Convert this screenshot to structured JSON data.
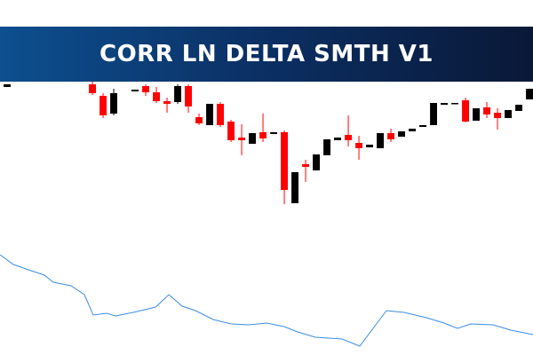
{
  "chart_data": {
    "type": "candlestick",
    "title": "CORR LN DELTA SMTH V1",
    "xlim": [
      -0.67,
      49.33
    ],
    "ylim": [
      0,
      400
    ],
    "up_color": "#000000",
    "down_color": "#ff0000",
    "x": [
      0,
      8,
      9,
      10,
      12,
      13,
      14,
      15,
      16,
      17,
      18,
      19,
      20,
      21,
      22,
      23,
      24,
      25,
      26,
      27,
      28,
      29,
      30,
      31,
      32,
      33,
      34,
      35,
      36,
      37,
      38,
      39,
      40,
      41,
      42,
      43,
      44,
      45,
      46,
      47,
      48,
      49
    ],
    "open": [
      302,
      305,
      292,
      272,
      297,
      303,
      296,
      286,
      285,
      303,
      268,
      259,
      283,
      263,
      245,
      238,
      251,
      249,
      251,
      171,
      215,
      208,
      225,
      242,
      248,
      239,
      234,
      233,
      250,
      246,
      252,
      257,
      259,
      282,
      283,
      287,
      264,
      279,
      273,
      267,
      275,
      288
    ],
    "high": [
      305,
      308,
      295,
      300,
      299,
      305,
      302,
      290,
      305,
      305,
      272,
      283,
      285,
      265,
      260,
      250,
      272,
      251,
      253,
      206,
      220,
      226,
      243,
      245,
      270,
      247,
      237,
      250,
      255,
      252,
      255,
      259,
      284,
      284,
      284,
      290,
      278,
      285,
      278,
      276,
      282,
      300
    ],
    "low": [
      302,
      293,
      267,
      270,
      297,
      292,
      284,
      273,
      283,
      273,
      259,
      259,
      257,
      240,
      225,
      238,
      240,
      249,
      170,
      171,
      195,
      208,
      225,
      242,
      235,
      220,
      234,
      233,
      240,
      246,
      252,
      257,
      259,
      282,
      283,
      262,
      264,
      267,
      254,
      267,
      275,
      288
    ],
    "close": [
      305,
      295,
      270,
      295,
      299,
      296,
      286,
      283,
      303,
      280,
      261,
      283,
      259,
      242,
      242,
      250,
      244,
      251,
      186,
      206,
      212,
      226,
      243,
      245,
      242,
      233,
      237,
      250,
      243,
      252,
      255,
      259,
      284,
      284,
      284,
      263,
      278,
      271,
      267,
      276,
      282,
      300
    ],
    "indicator": {
      "color": "#3a8ee6",
      "x": [
        -0.67,
        0.58,
        2.25,
        3.5,
        4.33,
        6,
        7.25,
        8.08,
        9.33,
        10.17,
        11.83,
        13.92,
        15.17,
        16.42,
        17.67,
        19.33,
        21,
        22.67,
        24.33,
        26,
        27.25,
        28.92,
        31.42,
        33.08,
        34.33,
        35.58,
        37.25,
        39.33,
        41,
        42.25,
        43.5,
        45.58,
        47.25,
        49.33
      ],
      "values": [
        113,
        102,
        95,
        90,
        82,
        78,
        68,
        45,
        47,
        44,
        48,
        54,
        68,
        55,
        50,
        40,
        35,
        34,
        36,
        32,
        26,
        20,
        18,
        10,
        30,
        50,
        48,
        42,
        36,
        30,
        35,
        34,
        28,
        23
      ]
    }
  }
}
